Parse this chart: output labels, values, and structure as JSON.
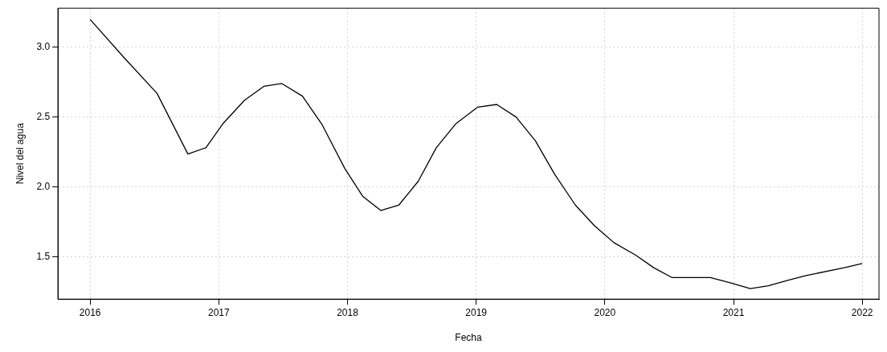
{
  "chart_data": {
    "type": "line",
    "xlabel": "Fecha",
    "ylabel": "Nivel del agua",
    "x": [
      2016.0,
      2016.26,
      2016.52,
      2016.76,
      2016.9,
      2017.03,
      2017.2,
      2017.35,
      2017.49,
      2017.65,
      2017.8,
      2017.98,
      2018.12,
      2018.26,
      2018.4,
      2018.55,
      2018.69,
      2018.84,
      2019.01,
      2019.16,
      2019.31,
      2019.46,
      2019.61,
      2019.77,
      2019.92,
      2020.07,
      2020.24,
      2020.38,
      2020.52,
      2020.67,
      2020.82,
      2020.98,
      2021.13,
      2021.27,
      2021.42,
      2021.57,
      2021.86,
      2022.0
    ],
    "series": [
      {
        "color": "#000000",
        "values": [
          3.2,
          2.93,
          2.67,
          2.235,
          2.28,
          2.45,
          2.62,
          2.72,
          2.74,
          2.65,
          2.45,
          2.13,
          1.93,
          1.83,
          1.87,
          2.04,
          2.28,
          2.45,
          2.57,
          2.59,
          2.5,
          2.33,
          2.09,
          1.87,
          1.72,
          1.6,
          1.51,
          1.42,
          1.35,
          1.35,
          1.35,
          1.31,
          1.27,
          1.29,
          1.33,
          1.365,
          1.42,
          1.45
        ]
      }
    ],
    "xlim": [
      2015.75,
      2022.13
    ],
    "xticks": [
      2016,
      2017,
      2018,
      2019,
      2020,
      2021,
      2022
    ],
    "ylim": [
      1.195,
      3.28
    ],
    "yticks": [
      {
        "value": 1.5,
        "label": "1.5"
      },
      {
        "value": 2,
        "label": "2.0"
      },
      {
        "value": 2.5,
        "label": "2.5"
      },
      {
        "value": 3,
        "label": "3.0"
      }
    ],
    "grid": true,
    "legend": false,
    "marker": "none",
    "line_style": "solid"
  }
}
